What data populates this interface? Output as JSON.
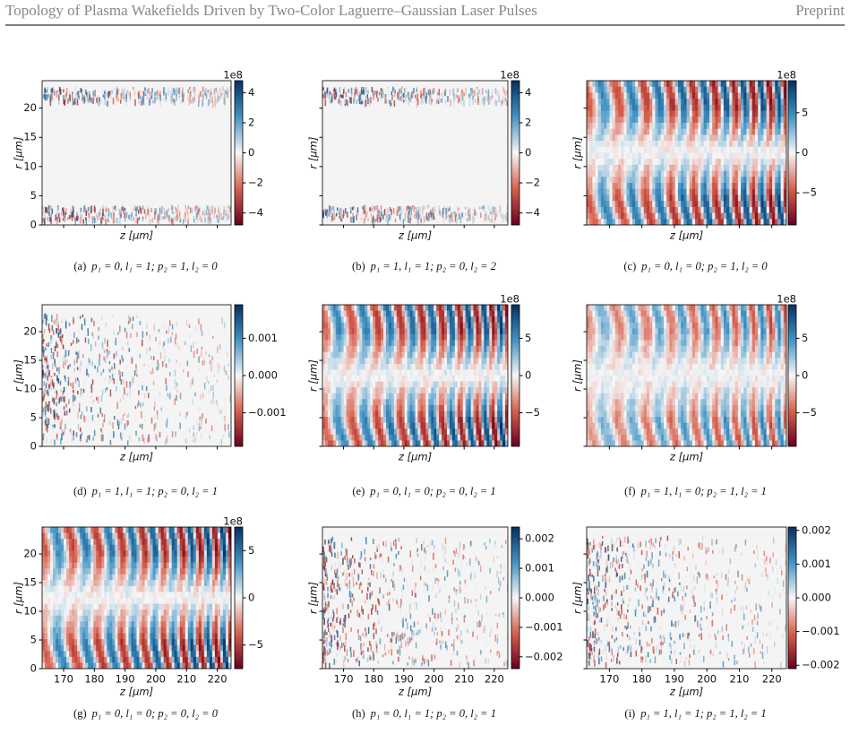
{
  "header": {
    "title": "Topology of Plasma Wakefields Driven by Two-Color Laguerre–Gaussian Laser Pulses",
    "label": "Preprint"
  },
  "chart_data": [
    {
      "type": "heatmap",
      "caption_label": "(a)",
      "caption": "p₁ = 0, l₁ = 1; p₂ = 1, l₂ = 0",
      "xlabel": "z [μm]",
      "ylabel": "r [μm]",
      "xlim": [
        163,
        224.5
      ],
      "ylim": [
        0,
        24.7
      ],
      "xticks": [
        170,
        180,
        190,
        200,
        210,
        220
      ],
      "yticks": [
        0,
        5,
        10,
        15,
        20
      ],
      "show_xtick_labels": false,
      "show_ytick_labels": true,
      "colormap": "RdBu",
      "clim": [
        -4.8,
        4.8
      ],
      "cticks": [
        {
          "value": -4,
          "label": "−4"
        },
        {
          "value": -2,
          "label": "−2"
        },
        0,
        2,
        4
      ],
      "coffset": "1e8"
    },
    {
      "type": "heatmap",
      "caption_label": "(b)",
      "caption": "p₁ = 1, l₁ = 1; p₂ = 0, l₂ = 2",
      "xlabel": "z [μm]",
      "ylabel": "r [μm]",
      "xlim": [
        163,
        224.5
      ],
      "ylim": [
        0,
        24.7
      ],
      "xticks": [
        170,
        180,
        190,
        200,
        210,
        220
      ],
      "yticks": [
        0,
        5,
        10,
        15,
        20
      ],
      "show_xtick_labels": false,
      "show_ytick_labels": false,
      "colormap": "RdBu",
      "clim": [
        -4.8,
        4.8
      ],
      "cticks": [
        {
          "value": -4,
          "label": "−4"
        },
        {
          "value": -2,
          "label": "−2"
        },
        0,
        2,
        4
      ],
      "coffset": "1e8"
    },
    {
      "type": "heatmap",
      "caption_label": "(c)",
      "caption": "p₁ = 0, l₁ = 0; p₂ = 1, l₂ = 0",
      "xlabel": "z [μm]",
      "ylabel": "r [μm]",
      "xlim": [
        163,
        224.5
      ],
      "ylim": [
        0,
        24.7
      ],
      "xticks": [
        170,
        180,
        190,
        200,
        210,
        220
      ],
      "yticks": [
        0,
        5,
        10,
        15,
        20
      ],
      "show_xtick_labels": false,
      "show_ytick_labels": false,
      "colormap": "RdBu",
      "clim": [
        -9,
        9
      ],
      "cticks": [
        {
          "value": -5,
          "label": "−5"
        },
        0,
        5
      ],
      "coffset": "1e8"
    },
    {
      "type": "heatmap",
      "caption_label": "(d)",
      "caption": "p₁ = 1, l₁ = 1; p₂ = 0, l₂ = 1",
      "xlabel": "z [μm]",
      "ylabel": "r [μm]",
      "xlim": [
        163,
        224.5
      ],
      "ylim": [
        0,
        24.7
      ],
      "xticks": [
        170,
        180,
        190,
        200,
        210,
        220
      ],
      "yticks": [
        0,
        5,
        10,
        15,
        20
      ],
      "show_xtick_labels": false,
      "show_ytick_labels": true,
      "colormap": "RdBu",
      "clim": [
        -0.0019,
        0.0019
      ],
      "cticks": [
        {
          "value": -0.001,
          "label": "−0.001"
        },
        {
          "value": 0,
          "label": "0.000"
        },
        0.001
      ]
    },
    {
      "type": "heatmap",
      "caption_label": "(e)",
      "caption": "p₁ = 0, l₁ = 0; p₂ = 0, l₂ = 1",
      "xlabel": "z [μm]",
      "ylabel": "r [μm]",
      "xlim": [
        163,
        224.5
      ],
      "ylim": [
        0,
        24.7
      ],
      "xticks": [
        170,
        180,
        190,
        200,
        210,
        220
      ],
      "yticks": [
        0,
        5,
        10,
        15,
        20
      ],
      "show_xtick_labels": false,
      "show_ytick_labels": false,
      "colormap": "RdBu",
      "clim": [
        -9.5,
        9.5
      ],
      "cticks": [
        {
          "value": -5,
          "label": "−5"
        },
        0,
        5
      ],
      "coffset": "1e8"
    },
    {
      "type": "heatmap",
      "caption_label": "(f)",
      "caption": "p₁ = 1, l₁ = 0; p₂ = 1, l₂ = 1",
      "xlabel": "z [μm]",
      "ylabel": "r [μm]",
      "xlim": [
        163,
        224.5
      ],
      "ylim": [
        0,
        24.7
      ],
      "xticks": [
        170,
        180,
        190,
        200,
        210,
        220
      ],
      "yticks": [
        0,
        5,
        10,
        15,
        20
      ],
      "show_xtick_labels": false,
      "show_ytick_labels": false,
      "colormap": "RdBu",
      "clim": [
        -9.5,
        9.5
      ],
      "cticks": [
        {
          "value": -5,
          "label": "−5"
        },
        0,
        5
      ],
      "coffset": "1e8"
    },
    {
      "type": "heatmap",
      "caption_label": "(g)",
      "caption": "p₁ = 0, l₁ = 0; p₂ = 0, l₂ = 0",
      "xlabel": "z [μm]",
      "ylabel": "r [μm]",
      "xlim": [
        163,
        224.5
      ],
      "ylim": [
        0,
        24.7
      ],
      "xticks": [
        170,
        180,
        190,
        200,
        210,
        220
      ],
      "yticks": [
        0,
        5,
        10,
        15,
        20
      ],
      "show_xtick_labels": true,
      "show_ytick_labels": true,
      "colormap": "RdBu",
      "clim": [
        -7.5,
        7.5
      ],
      "cticks": [
        {
          "value": -5,
          "label": "−5"
        },
        0,
        5
      ],
      "coffset": "1e8"
    },
    {
      "type": "heatmap",
      "caption_label": "(h)",
      "caption": "p₁ = 0, l₁ = 1; p₂ = 0, l₂ = 1",
      "xlabel": "z [μm]",
      "ylabel": "r [μm]",
      "xlim": [
        163,
        224.5
      ],
      "ylim": [
        0,
        24.7
      ],
      "xticks": [
        170,
        180,
        190,
        200,
        210,
        220
      ],
      "yticks": [
        0,
        5,
        10,
        15,
        20
      ],
      "show_xtick_labels": true,
      "show_ytick_labels": false,
      "colormap": "RdBu",
      "clim": [
        -0.0024,
        0.0024
      ],
      "cticks": [
        {
          "value": -0.002,
          "label": "−0.002"
        },
        {
          "value": -0.001,
          "label": "−0.001"
        },
        {
          "value": 0,
          "label": "0.000"
        },
        0.001,
        0.002
      ]
    },
    {
      "type": "heatmap",
      "caption_label": "(i)",
      "caption": "p₁ = 1, l₁ = 1; p₂ = 1, l₂ = 1",
      "xlabel": "z [μm]",
      "ylabel": "r [μm]",
      "xlim": [
        163,
        224.5
      ],
      "ylim": [
        0,
        24.7
      ],
      "xticks": [
        170,
        180,
        190,
        200,
        210,
        220
      ],
      "yticks": [
        0,
        5,
        10,
        15,
        20
      ],
      "show_xtick_labels": true,
      "show_ytick_labels": false,
      "colormap": "RdBu",
      "clim": [
        -0.0021,
        0.0021
      ],
      "cticks": [
        {
          "value": -0.002,
          "label": "−0.002"
        },
        {
          "value": -0.001,
          "label": "−0.001"
        },
        {
          "value": 0,
          "label": "0.000"
        },
        0.001,
        0.002
      ]
    }
  ]
}
